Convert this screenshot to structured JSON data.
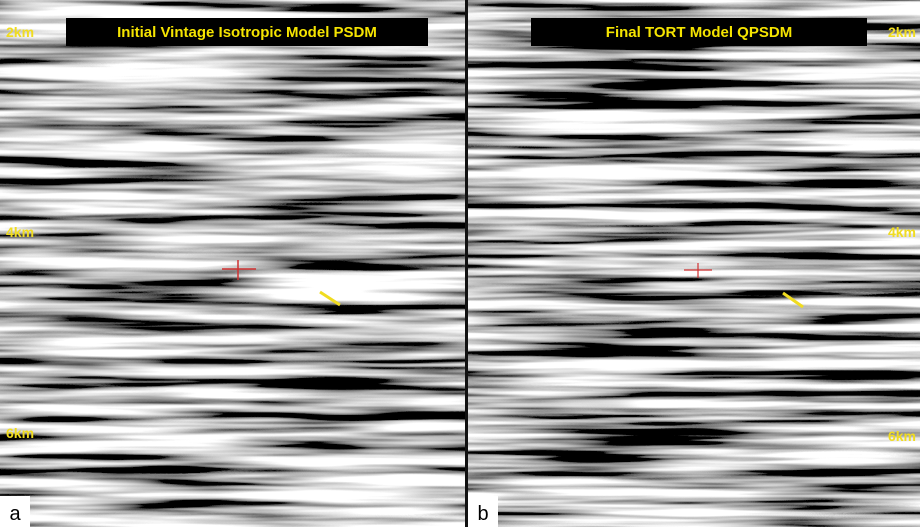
{
  "panels": [
    {
      "label": "a",
      "title": "Initial Vintage Isotropic Model PSDM",
      "depth_labels": [
        "2km",
        "4km",
        "6km"
      ]
    },
    {
      "label": "b",
      "title": "Final TORT Model QPSDM",
      "depth_labels": [
        "2km",
        "4km",
        "6km"
      ]
    }
  ]
}
